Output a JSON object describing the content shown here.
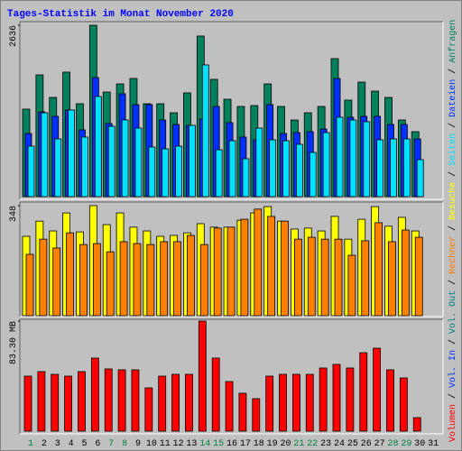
{
  "title": "Tages-Statistik im Monat November 2020",
  "legend_separator": "/",
  "legend_extra": [
    {
      "name": "Vol. In",
      "color": "#0030ff"
    },
    {
      "name": "Vol. Out",
      "color": "#008080"
    }
  ],
  "chart_data": [
    {
      "type": "bar",
      "ylim": [
        0,
        2636
      ],
      "yticks": [
        2636
      ],
      "tick_color": "#000000",
      "series": [
        {
          "name": "Anfragen",
          "color": "#00805c",
          "values": [
            1346,
            1873,
            1526,
            1915,
            1429,
            2636,
            1609,
            1734,
            1818,
            1429,
            1429,
            1290,
            1596,
            2470,
            1804,
            1498,
            1387,
            1401,
            1734,
            1387,
            1179,
            1290,
            1387,
            2123,
            1485,
            1762,
            1623,
            1526,
            1179,
            999,
            null
          ]
        },
        {
          "name": "Dateien",
          "color": "#0030ff",
          "values": [
            971,
            1304,
            1235,
            1332,
            1027,
            1831,
            1124,
            1582,
            1415,
            1415,
            1179,
            1110,
            1096,
            1193,
            1387,
            1138,
            916,
            874,
            1415,
            971,
            985,
            999,
            1040,
            1817,
            1221,
            1235,
            1235,
            1110,
            1110,
            888,
            null
          ]
        },
        {
          "name": "Seiten",
          "color": "#00e0ff",
          "values": [
            777,
            1290,
            888,
            1332,
            916,
            1540,
            1082,
            1179,
            1054,
            763,
            735,
            777,
            1096,
            2026,
            721,
            860,
            583,
            1054,
            874,
            860,
            805,
            680,
            985,
            1221,
            1179,
            1152,
            874,
            888,
            888,
            569,
            null
          ]
        }
      ]
    },
    {
      "type": "bar",
      "ylim": [
        0,
        348
      ],
      "yticks": [
        348
      ],
      "tick_color": "#000000",
      "series": [
        {
          "name": "Besuche",
          "color": "#ffff00",
          "values": [
            251,
            299,
            268,
            325,
            265,
            348,
            288,
            325,
            280,
            268,
            251,
            254,
            262,
            291,
            280,
            280,
            302,
            325,
            345,
            299,
            274,
            277,
            268,
            314,
            242,
            305,
            345,
            283,
            311,
            268,
            null
          ]
        },
        {
          "name": "Rechner",
          "color": "#ff8000",
          "values": [
            194,
            242,
            214,
            262,
            225,
            228,
            202,
            234,
            228,
            225,
            234,
            234,
            254,
            225,
            277,
            280,
            305,
            337,
            314,
            299,
            242,
            248,
            242,
            242,
            191,
            237,
            294,
            234,
            271,
            248,
            null
          ]
        }
      ]
    },
    {
      "type": "bar",
      "ylim": [
        0,
        83.3
      ],
      "yticks": [
        {
          "value": 83.3,
          "label": "83.30 MB"
        }
      ],
      "tick_color": "#000000",
      "categories": [
        "1",
        "2",
        "3",
        "4",
        "5",
        "6",
        "7",
        "8",
        "9",
        "10",
        "11",
        "12",
        "13",
        "14",
        "15",
        "16",
        "17",
        "18",
        "19",
        "20",
        "21",
        "22",
        "23",
        "24",
        "25",
        "26",
        "27",
        "28",
        "29",
        "30",
        "31"
      ],
      "category_colors": [
        "#008040",
        "#000000",
        "#000000",
        "#000000",
        "#000000",
        "#000000",
        "#008040",
        "#008040",
        "#000000",
        "#000000",
        "#000000",
        "#000000",
        "#000000",
        "#008040",
        "#008040",
        "#000000",
        "#000000",
        "#000000",
        "#000000",
        "#000000",
        "#008040",
        "#008040",
        "#000000",
        "#000000",
        "#000000",
        "#000000",
        "#000000",
        "#008040",
        "#008040",
        "#000000",
        "#000000"
      ],
      "series": [
        {
          "name": "Volumen",
          "color": "#ff0000",
          "values": [
            41.65,
            45.07,
            43.02,
            41.65,
            45.07,
            55.31,
            47.11,
            46.43,
            46.43,
            32.77,
            41.65,
            43.02,
            43.02,
            83.3,
            55.31,
            37.55,
            28.68,
            24.58,
            41.65,
            43.02,
            43.02,
            43.02,
            47.8,
            50.53,
            47.8,
            59.4,
            62.82,
            46.43,
            40.29,
            10.24,
            null
          ]
        }
      ]
    }
  ]
}
